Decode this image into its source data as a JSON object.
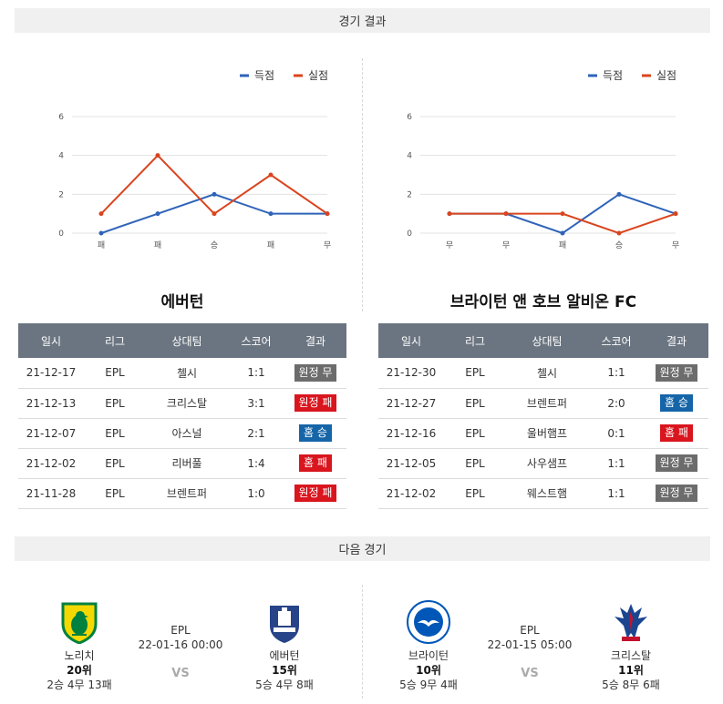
{
  "sections": {
    "results_title": "경기 결과",
    "next_title": "다음 경기"
  },
  "legend": {
    "goals": "득점",
    "conceded": "실점"
  },
  "colors": {
    "goals": "#2e63b8",
    "conceded": "#d9441e",
    "win": "#1565a8",
    "loss": "#d9151e",
    "draw": "#6c6c6c",
    "header": "#6b7581"
  },
  "chart_data": [
    {
      "type": "line",
      "categories": [
        "패",
        "패",
        "승",
        "패",
        "무"
      ],
      "series": [
        {
          "name": "득점",
          "values": [
            0,
            1,
            2,
            1,
            1
          ]
        },
        {
          "name": "실점",
          "values": [
            1,
            4,
            1,
            3,
            1
          ]
        }
      ],
      "yticks": [
        "0",
        "2",
        "4",
        "6"
      ],
      "ylim": [
        0,
        6
      ],
      "grid": true,
      "legend": "top-right"
    },
    {
      "type": "line",
      "categories": [
        "무",
        "무",
        "패",
        "승",
        "무"
      ],
      "series": [
        {
          "name": "득점",
          "values": [
            1,
            1,
            0,
            2,
            1
          ]
        },
        {
          "name": "실점",
          "values": [
            1,
            1,
            1,
            0,
            1
          ]
        }
      ],
      "yticks": [
        "0",
        "2",
        "4",
        "6"
      ],
      "ylim": [
        0,
        6
      ],
      "grid": true,
      "legend": "top-right"
    }
  ],
  "teams": [
    {
      "title": "에버턴",
      "headers": [
        "일시",
        "리그",
        "상대팀",
        "스코어",
        "결과"
      ],
      "rows": [
        {
          "date": "21-12-17",
          "league": "EPL",
          "opponent": "첼시",
          "score": "1:1",
          "result": "원정 무",
          "kind": "draw"
        },
        {
          "date": "21-12-13",
          "league": "EPL",
          "opponent": "크리스탈",
          "score": "3:1",
          "result": "원정 패",
          "kind": "loss"
        },
        {
          "date": "21-12-07",
          "league": "EPL",
          "opponent": "아스널",
          "score": "2:1",
          "result": "홈 승",
          "kind": "win"
        },
        {
          "date": "21-12-02",
          "league": "EPL",
          "opponent": "리버풀",
          "score": "1:4",
          "result": "홈 패",
          "kind": "loss"
        },
        {
          "date": "21-11-28",
          "league": "EPL",
          "opponent": "브렌트퍼",
          "score": "1:0",
          "result": "원정 패",
          "kind": "loss"
        }
      ]
    },
    {
      "title": "브라이턴 앤 호브 알비온 FC",
      "headers": [
        "일시",
        "리그",
        "상대팀",
        "스코어",
        "결과"
      ],
      "rows": [
        {
          "date": "21-12-30",
          "league": "EPL",
          "opponent": "첼시",
          "score": "1:1",
          "result": "원정 무",
          "kind": "draw"
        },
        {
          "date": "21-12-27",
          "league": "EPL",
          "opponent": "브렌트퍼",
          "score": "2:0",
          "result": "홈 승",
          "kind": "win"
        },
        {
          "date": "21-12-16",
          "league": "EPL",
          "opponent": "울버햄프",
          "score": "0:1",
          "result": "홈 패",
          "kind": "loss"
        },
        {
          "date": "21-12-05",
          "league": "EPL",
          "opponent": "사우샘프",
          "score": "1:1",
          "result": "원정 무",
          "kind": "draw"
        },
        {
          "date": "21-12-02",
          "league": "EPL",
          "opponent": "웨스트햄",
          "score": "1:1",
          "result": "원정 무",
          "kind": "draw"
        }
      ]
    }
  ],
  "next_matches": [
    {
      "league": "EPL",
      "datetime": "22-01-16 00:00",
      "vs": "VS",
      "home": {
        "name": "노리치",
        "rank": "20위",
        "record": "2승 4무 13패",
        "logo": "norwich-canary-logo"
      },
      "away": {
        "name": "에버턴",
        "rank": "15위",
        "record": "5승 4무 8패",
        "logo": "everton-crest-logo"
      }
    },
    {
      "league": "EPL",
      "datetime": "22-01-15 05:00",
      "vs": "VS",
      "home": {
        "name": "브라이턴",
        "rank": "10위",
        "record": "5승 9무 4패",
        "logo": "brighton-seagull-logo"
      },
      "away": {
        "name": "크리스탈",
        "rank": "11위",
        "record": "5승 8무 6패",
        "logo": "crystal-palace-eagle-logo"
      }
    }
  ]
}
